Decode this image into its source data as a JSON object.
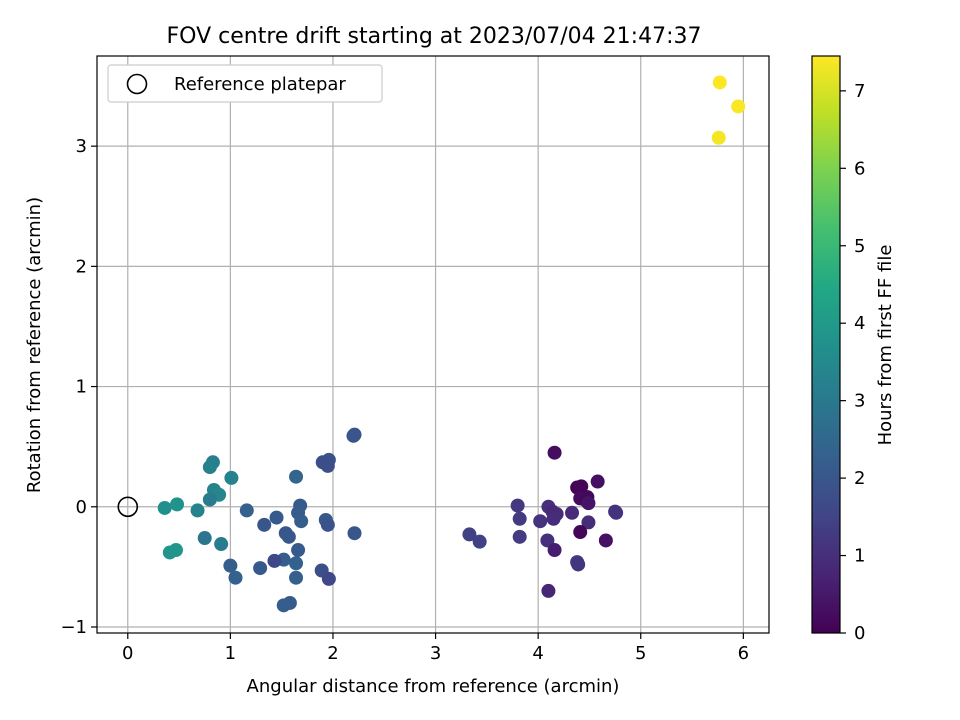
{
  "chart_data": {
    "type": "scatter",
    "title": "FOV centre drift starting at 2023/07/04 21:47:37",
    "xlabel": "Angular distance from reference (arcmin)",
    "ylabel": "Rotation from reference (arcmin)",
    "xlim": [
      -0.3,
      6.25
    ],
    "ylim": [
      -1.05,
      3.75
    ],
    "xticks": [
      0,
      1,
      2,
      3,
      4,
      5,
      6
    ],
    "yticks": [
      -1,
      0,
      1,
      2,
      3
    ],
    "grid": true,
    "legend": {
      "placement": "upper-left",
      "entries": [
        "Reference platepar"
      ]
    },
    "reference_point": {
      "x": 0,
      "y": 0
    },
    "colorbar": {
      "label": "Hours from first FF file",
      "range": [
        0,
        7.45
      ],
      "ticks": [
        0,
        1,
        2,
        3,
        4,
        5,
        6,
        7
      ],
      "colormap": "viridis"
    },
    "points": [
      {
        "x": 5.77,
        "y": 3.53,
        "c": 7.45
      },
      {
        "x": 5.95,
        "y": 3.33,
        "c": 7.4
      },
      {
        "x": 5.76,
        "y": 3.07,
        "c": 7.35
      },
      {
        "x": 4.16,
        "y": 0.45,
        "c": 0.25
      },
      {
        "x": 4.58,
        "y": 0.21,
        "c": 0.3
      },
      {
        "x": 4.38,
        "y": 0.16,
        "c": 0.05
      },
      {
        "x": 4.42,
        "y": 0.17,
        "c": 0.1
      },
      {
        "x": 4.48,
        "y": 0.08,
        "c": 0.15
      },
      {
        "x": 4.41,
        "y": 0.07,
        "c": 0.2
      },
      {
        "x": 4.47,
        "y": 0.05,
        "c": 0.12
      },
      {
        "x": 4.49,
        "y": 0.03,
        "c": 0.4
      },
      {
        "x": 4.33,
        "y": -0.05,
        "c": 0.9
      },
      {
        "x": 4.75,
        "y": -0.04,
        "c": 1.05
      },
      {
        "x": 4.76,
        "y": -0.05,
        "c": 1.1
      },
      {
        "x": 4.49,
        "y": -0.13,
        "c": 0.95
      },
      {
        "x": 4.41,
        "y": -0.21,
        "c": 0.1
      },
      {
        "x": 4.66,
        "y": -0.28,
        "c": 0.35
      },
      {
        "x": 4.09,
        "y": -0.28,
        "c": 1.0
      },
      {
        "x": 4.16,
        "y": -0.36,
        "c": 0.6
      },
      {
        "x": 4.38,
        "y": -0.46,
        "c": 1.2
      },
      {
        "x": 4.39,
        "y": -0.48,
        "c": 1.15
      },
      {
        "x": 4.1,
        "y": -0.7,
        "c": 0.8
      },
      {
        "x": 4.1,
        "y": 0.0,
        "c": 1.0
      },
      {
        "x": 4.14,
        "y": -0.04,
        "c": 0.85
      },
      {
        "x": 4.18,
        "y": -0.06,
        "c": 0.9
      },
      {
        "x": 4.15,
        "y": -0.1,
        "c": 0.95
      },
      {
        "x": 4.02,
        "y": -0.12,
        "c": 1.1
      },
      {
        "x": 3.8,
        "y": 0.01,
        "c": 1.2
      },
      {
        "x": 3.82,
        "y": -0.1,
        "c": 1.25
      },
      {
        "x": 3.82,
        "y": -0.25,
        "c": 1.3
      },
      {
        "x": 3.33,
        "y": -0.23,
        "c": 1.4
      },
      {
        "x": 3.43,
        "y": -0.29,
        "c": 1.45
      },
      {
        "x": 2.21,
        "y": 0.6,
        "c": 1.9
      },
      {
        "x": 2.2,
        "y": 0.59,
        "c": 1.95
      },
      {
        "x": 1.96,
        "y": 0.39,
        "c": 1.85
      },
      {
        "x": 1.9,
        "y": 0.37,
        "c": 1.75
      },
      {
        "x": 1.95,
        "y": 0.34,
        "c": 1.8
      },
      {
        "x": 2.21,
        "y": -0.22,
        "c": 2.0
      },
      {
        "x": 1.93,
        "y": -0.11,
        "c": 2.05
      },
      {
        "x": 1.95,
        "y": -0.15,
        "c": 1.9
      },
      {
        "x": 1.89,
        "y": -0.53,
        "c": 1.8
      },
      {
        "x": 1.96,
        "y": -0.6,
        "c": 1.6
      },
      {
        "x": 1.68,
        "y": 0.01,
        "c": 2.1
      },
      {
        "x": 1.66,
        "y": -0.05,
        "c": 2.15
      },
      {
        "x": 1.69,
        "y": -0.12,
        "c": 2.2
      },
      {
        "x": 1.64,
        "y": 0.25,
        "c": 2.4
      },
      {
        "x": 1.54,
        "y": -0.22,
        "c": 2.0
      },
      {
        "x": 1.57,
        "y": -0.25,
        "c": 2.05
      },
      {
        "x": 1.66,
        "y": -0.36,
        "c": 2.1
      },
      {
        "x": 1.52,
        "y": -0.44,
        "c": 2.2
      },
      {
        "x": 1.64,
        "y": -0.47,
        "c": 2.3
      },
      {
        "x": 1.64,
        "y": -0.59,
        "c": 2.25
      },
      {
        "x": 1.58,
        "y": -0.8,
        "c": 2.15
      },
      {
        "x": 1.52,
        "y": -0.82,
        "c": 2.2
      },
      {
        "x": 1.45,
        "y": -0.09,
        "c": 2.1
      },
      {
        "x": 1.33,
        "y": -0.15,
        "c": 2.0
      },
      {
        "x": 1.43,
        "y": -0.45,
        "c": 1.6
      },
      {
        "x": 1.29,
        "y": -0.51,
        "c": 2.1
      },
      {
        "x": 1.16,
        "y": -0.03,
        "c": 2.3
      },
      {
        "x": 1.0,
        "y": -0.49,
        "c": 2.2
      },
      {
        "x": 1.05,
        "y": -0.59,
        "c": 2.3
      },
      {
        "x": 1.01,
        "y": 0.24,
        "c": 3.3
      },
      {
        "x": 0.83,
        "y": 0.37,
        "c": 3.2
      },
      {
        "x": 0.8,
        "y": 0.33,
        "c": 3.25
      },
      {
        "x": 0.84,
        "y": 0.14,
        "c": 3.3
      },
      {
        "x": 0.89,
        "y": 0.1,
        "c": 3.4
      },
      {
        "x": 0.8,
        "y": 0.06,
        "c": 3.1
      },
      {
        "x": 0.68,
        "y": -0.03,
        "c": 3.3
      },
      {
        "x": 0.75,
        "y": -0.26,
        "c": 2.9
      },
      {
        "x": 0.91,
        "y": -0.31,
        "c": 3.1
      },
      {
        "x": 0.48,
        "y": 0.02,
        "c": 3.8
      },
      {
        "x": 0.36,
        "y": -0.01,
        "c": 3.7
      },
      {
        "x": 0.47,
        "y": -0.36,
        "c": 3.9
      },
      {
        "x": 0.41,
        "y": -0.38,
        "c": 3.85
      }
    ]
  }
}
